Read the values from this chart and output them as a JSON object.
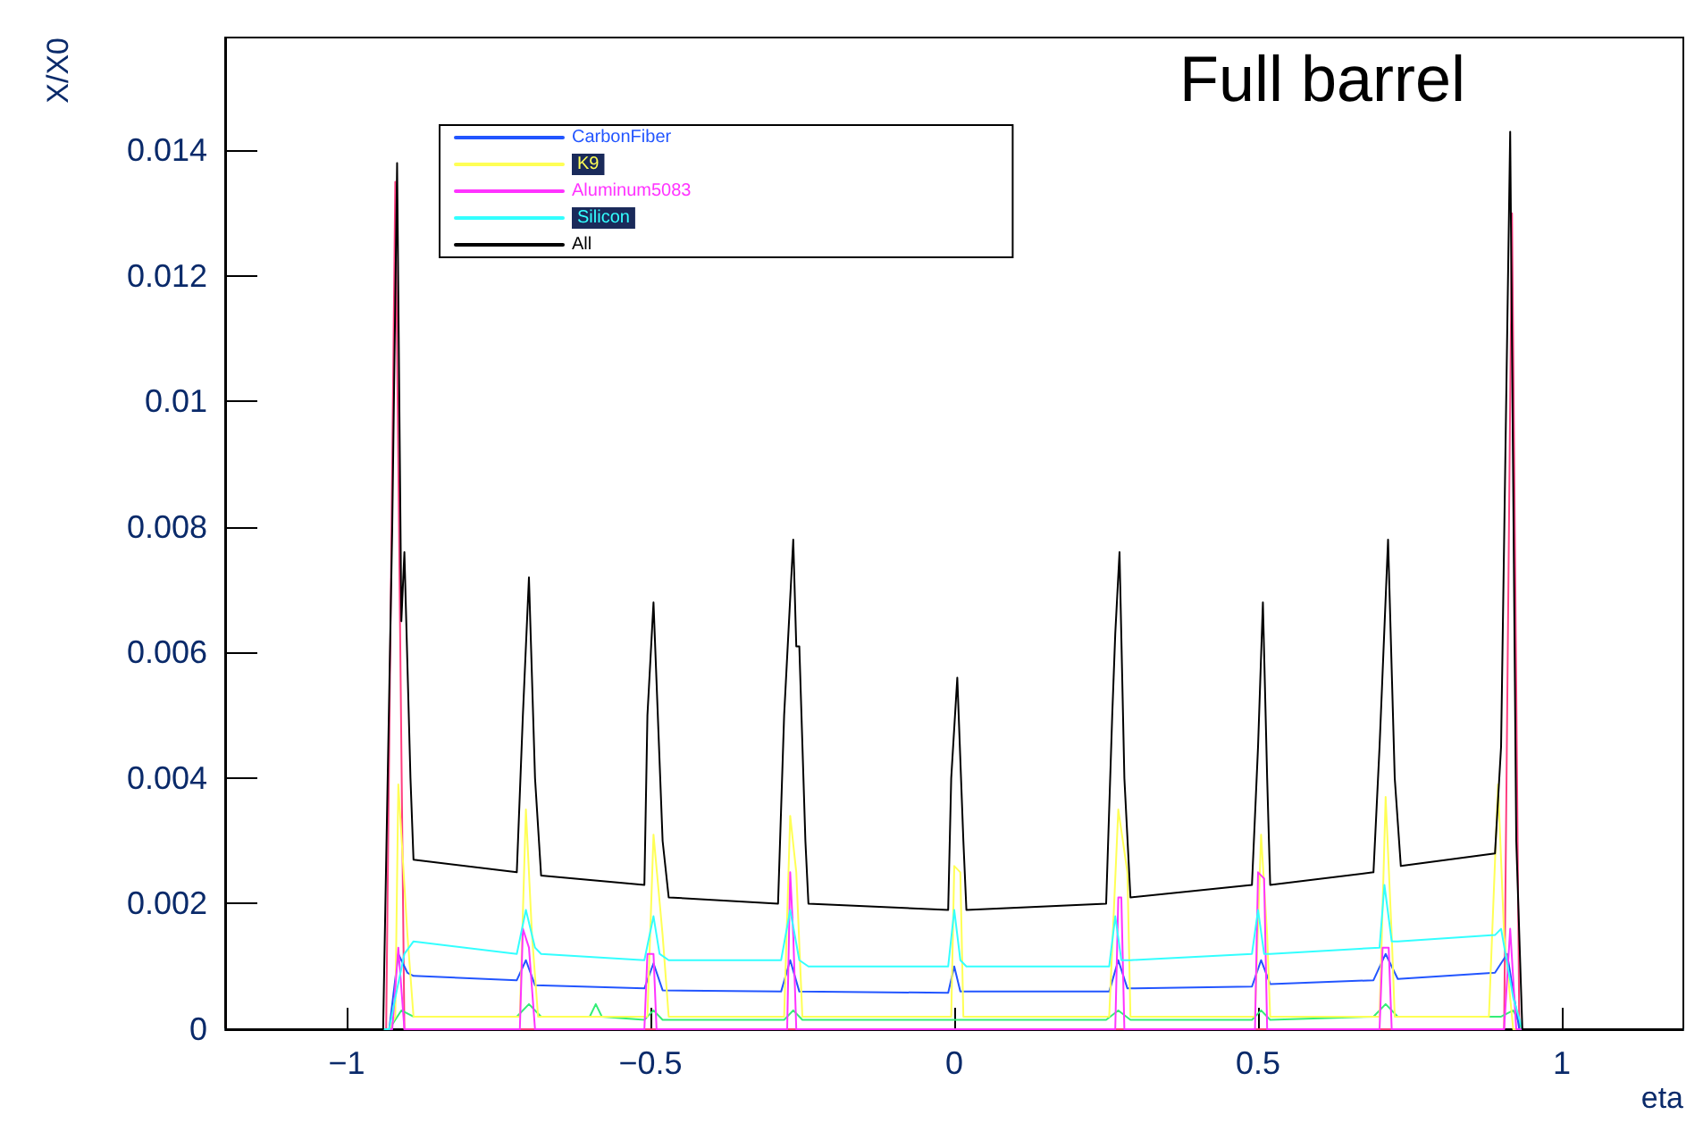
{
  "chart_data": {
    "type": "line",
    "xlabel": "eta",
    "ylabel": "X/X0",
    "annotations": [
      "Full barrel"
    ],
    "xlim": [
      -1.2,
      1.2
    ],
    "xticks": [
      {
        "value": -1,
        "label": "−1"
      },
      {
        "value": -0.5,
        "label": "−0.5"
      },
      0,
      0.5,
      1
    ],
    "ylim": [
      0,
      0.0158
    ],
    "yticks": [
      0,
      0.002,
      0.004,
      0.006,
      0.008,
      0.01,
      0.012,
      0.014
    ],
    "grid": false,
    "legend": "top left",
    "marker": "none",
    "line_style": "solid",
    "series": [
      {
        "color": "#ff3d7f",
        "x": [
          -1.2,
          -0.935,
          -0.92,
          -0.905,
          0.905,
          0.918,
          0.93,
          1.2
        ],
        "values": [
          0,
          0,
          0.0135,
          0,
          0,
          0.013,
          0,
          0
        ]
      },
      {
        "color": "#33ee77",
        "x": [
          -1.2,
          -0.93,
          -0.91,
          -0.89,
          -0.72,
          -0.7,
          -0.68,
          -0.6,
          -0.59,
          -0.58,
          -0.51,
          -0.495,
          -0.48,
          -0.28,
          -0.265,
          -0.25,
          0.25,
          0.27,
          0.29,
          0.49,
          0.505,
          0.52,
          0.69,
          0.71,
          0.73,
          0.9,
          0.92,
          0.935,
          1.2
        ],
        "values": [
          0,
          0,
          0.0003,
          0.0002,
          0.0002,
          0.0004,
          0.0002,
          0.0002,
          0.0004,
          0.0002,
          0.00015,
          0.0003,
          0.00015,
          0.00015,
          0.0003,
          0.00015,
          0.00015,
          0.0003,
          0.00015,
          0.00015,
          0.0003,
          0.00015,
          0.0002,
          0.0004,
          0.0002,
          0.0002,
          0.0003,
          0,
          0
        ]
      },
      {
        "name": "CarbonFiber",
        "color": "#2255ff",
        "x": [
          -1.2,
          -0.93,
          -0.915,
          -0.9,
          -0.89,
          -0.72,
          -0.705,
          -0.69,
          -0.51,
          -0.495,
          -0.48,
          -0.285,
          -0.27,
          -0.255,
          -0.01,
          0.0,
          0.01,
          0.255,
          0.27,
          0.285,
          0.49,
          0.505,
          0.52,
          0.69,
          0.71,
          0.73,
          0.89,
          0.91,
          0.93,
          1.2
        ],
        "values": [
          0,
          0,
          0.0012,
          0.0009,
          0.00085,
          0.00078,
          0.0011,
          0.0007,
          0.00065,
          0.00105,
          0.00062,
          0.0006,
          0.0011,
          0.0006,
          0.00058,
          0.001,
          0.0006,
          0.0006,
          0.0011,
          0.00065,
          0.00068,
          0.0011,
          0.00072,
          0.00078,
          0.0012,
          0.0008,
          0.0009,
          0.0012,
          0,
          0
        ]
      },
      {
        "name": "K9",
        "color": "#ffff55",
        "x": [
          -1.2,
          -0.93,
          -0.92,
          -0.915,
          -0.9,
          -0.89,
          -0.715,
          -0.705,
          -0.695,
          -0.685,
          -0.505,
          -0.495,
          -0.48,
          -0.47,
          -0.28,
          -0.27,
          -0.26,
          -0.25,
          -0.005,
          0.0,
          0.01,
          0.015,
          0.255,
          0.27,
          0.285,
          0.29,
          0.495,
          0.505,
          0.515,
          0.52,
          0.7,
          0.71,
          0.72,
          0.725,
          0.88,
          0.895,
          0.905,
          0.92,
          1.2
        ],
        "values": [
          0,
          0,
          0.0002,
          0.0039,
          0.0015,
          0.0002,
          0.0002,
          0.0035,
          0.0015,
          0.0002,
          0.0002,
          0.0031,
          0.0015,
          0.0002,
          0.0002,
          0.0034,
          0.0025,
          0.0002,
          0.0002,
          0.0026,
          0.0025,
          0.0002,
          0.0002,
          0.0035,
          0.0025,
          0.0002,
          0.0002,
          0.0031,
          0.0015,
          0.0002,
          0.0002,
          0.0037,
          0.0015,
          0.0002,
          0.0002,
          0.0039,
          0.0015,
          0,
          0
        ]
      },
      {
        "name": "Aluminum5083",
        "color": "#ff33ff",
        "x": [
          -1.2,
          -0.925,
          -0.915,
          -0.905,
          -0.715,
          -0.71,
          -0.7,
          -0.69,
          -0.51,
          -0.505,
          -0.495,
          -0.49,
          -0.275,
          -0.27,
          -0.265,
          -0.26,
          0.265,
          0.27,
          0.275,
          0.28,
          0.495,
          0.5,
          0.51,
          0.515,
          0.7,
          0.705,
          0.715,
          0.72,
          0.905,
          0.915,
          0.925,
          1.2
        ],
        "values": [
          0,
          0,
          0.0013,
          0,
          0,
          0.0016,
          0.0013,
          0,
          0,
          0.0012,
          0.0012,
          0,
          0,
          0.0025,
          0.0015,
          0,
          0,
          0.0021,
          0.0021,
          0,
          0,
          0.0025,
          0.0024,
          0,
          0,
          0.0013,
          0.0013,
          0,
          0,
          0.0016,
          0,
          0
        ]
      },
      {
        "name": "Silicon",
        "color": "#33ffff",
        "x": [
          -1.2,
          -0.93,
          -0.92,
          -0.905,
          -0.89,
          -0.72,
          -0.705,
          -0.69,
          -0.68,
          -0.51,
          -0.495,
          -0.485,
          -0.47,
          -0.285,
          -0.27,
          -0.255,
          -0.24,
          -0.01,
          0.0,
          0.01,
          0.02,
          0.255,
          0.265,
          0.275,
          0.29,
          0.49,
          0.5,
          0.51,
          0.52,
          0.7,
          0.708,
          0.72,
          0.73,
          0.89,
          0.9,
          0.92,
          0.935,
          1.2
        ],
        "values": [
          0,
          0,
          0.0005,
          0.0012,
          0.0014,
          0.0012,
          0.0019,
          0.0013,
          0.0012,
          0.0011,
          0.0018,
          0.0012,
          0.0011,
          0.0011,
          0.0019,
          0.0011,
          0.001,
          0.001,
          0.0019,
          0.0011,
          0.001,
          0.001,
          0.0018,
          0.0011,
          0.0011,
          0.0012,
          0.0019,
          0.0012,
          0.0012,
          0.0013,
          0.0023,
          0.0014,
          0.0014,
          0.0015,
          0.0016,
          0.0005,
          0,
          0
        ]
      },
      {
        "name": "All",
        "color": "#000000",
        "x": [
          -1.2,
          -0.94,
          -0.925,
          -0.917,
          -0.91,
          -0.905,
          -0.895,
          -0.89,
          -0.72,
          -0.71,
          -0.7,
          -0.69,
          -0.68,
          -0.51,
          -0.505,
          -0.495,
          -0.48,
          -0.47,
          -0.29,
          -0.28,
          -0.265,
          -0.26,
          -0.255,
          -0.245,
          -0.24,
          -0.01,
          -0.005,
          0.005,
          0.015,
          0.02,
          0.25,
          0.26,
          0.265,
          0.272,
          0.28,
          0.29,
          0.49,
          0.5,
          0.508,
          0.515,
          0.52,
          0.69,
          0.7,
          0.714,
          0.725,
          0.735,
          0.89,
          0.9,
          0.915,
          0.925,
          0.935,
          1.2
        ],
        "values": [
          0,
          0,
          0.008,
          0.0138,
          0.0065,
          0.0076,
          0.004,
          0.0027,
          0.0025,
          0.005,
          0.0072,
          0.004,
          0.00245,
          0.0023,
          0.005,
          0.0068,
          0.003,
          0.0021,
          0.002,
          0.005,
          0.0078,
          0.0061,
          0.0061,
          0.003,
          0.002,
          0.0019,
          0.004,
          0.0056,
          0.003,
          0.0019,
          0.002,
          0.005,
          0.0063,
          0.0076,
          0.004,
          0.0021,
          0.0023,
          0.0045,
          0.0068,
          0.004,
          0.0023,
          0.0025,
          0.0045,
          0.0078,
          0.004,
          0.0026,
          0.0028,
          0.0045,
          0.0143,
          0.003,
          0,
          0
        ]
      }
    ]
  }
}
